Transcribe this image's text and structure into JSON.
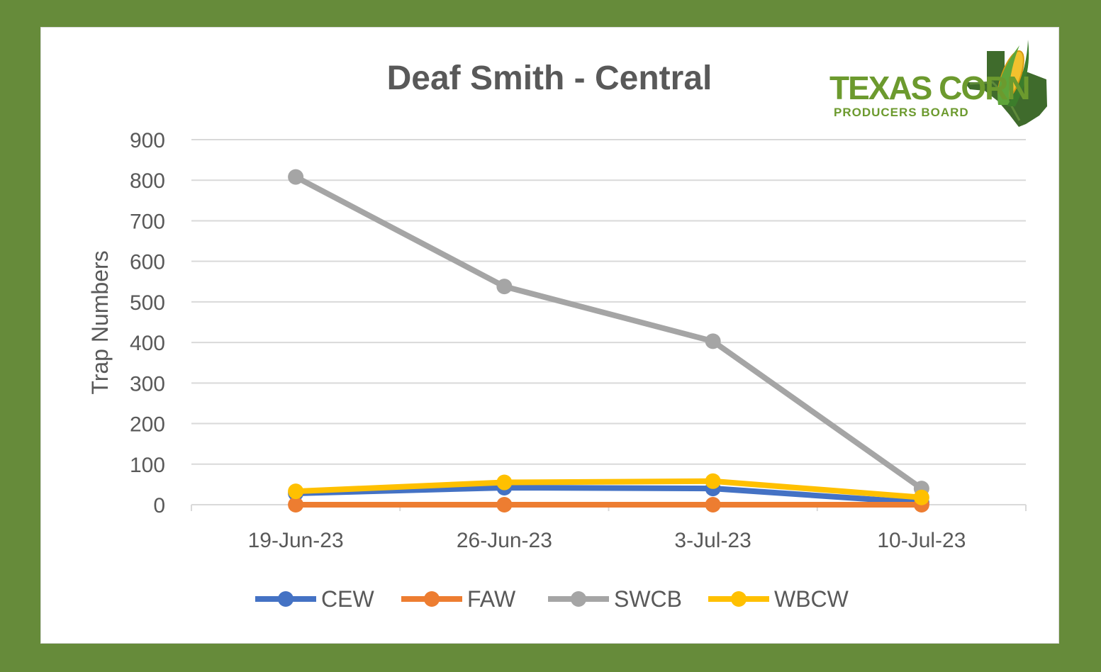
{
  "logo": {
    "line1": "TEXAS CORN",
    "line2": "PRODUCERS BOARD"
  },
  "colors": {
    "background": "#668b3a",
    "CEW": "#4472c4",
    "FAW": "#ed7d31",
    "SWCB": "#a5a5a5",
    "WBCW": "#ffc000"
  },
  "chart_data": {
    "type": "line",
    "title": "Deaf Smith -  Central",
    "ylabel": "Trap Numbers",
    "xlabel": "",
    "categories": [
      "19-Jun-23",
      "26-Jun-23",
      "3-Jul-23",
      "10-Jul-23"
    ],
    "ylim": [
      0,
      900
    ],
    "yticks": [
      0,
      100,
      200,
      300,
      400,
      500,
      600,
      700,
      800,
      900
    ],
    "grid": true,
    "legend_position": "bottom",
    "series": [
      {
        "name": "CEW",
        "values": [
          28,
          42,
          40,
          5
        ]
      },
      {
        "name": "FAW",
        "values": [
          0,
          0,
          0,
          0
        ]
      },
      {
        "name": "SWCB",
        "values": [
          808,
          538,
          403,
          40
        ]
      },
      {
        "name": "WBCW",
        "values": [
          33,
          55,
          58,
          18
        ]
      }
    ]
  }
}
